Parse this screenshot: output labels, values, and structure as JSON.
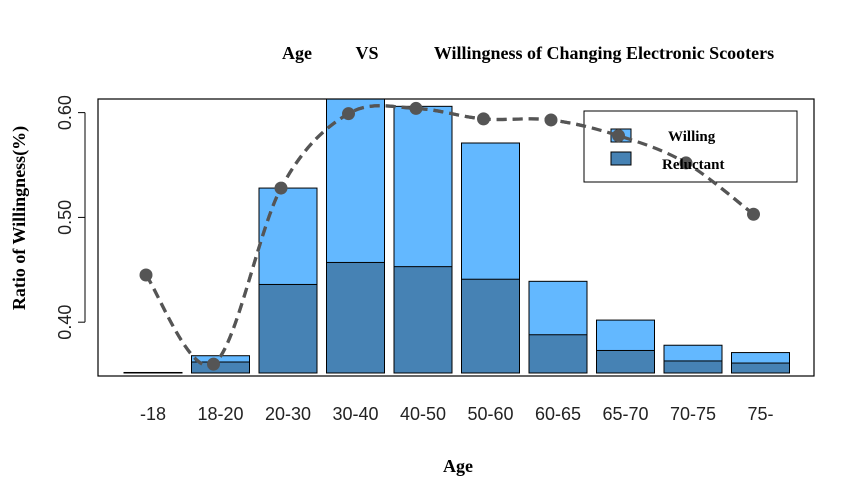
{
  "chart_data": {
    "type": "bar",
    "title_parts": [
      "Age",
      "VS",
      "Willingness of Changing Electronic Scooters"
    ],
    "xlabel": "Age",
    "ylabel": "Ratio of Willingness(%)",
    "categories": [
      "-18",
      "18-20",
      "20-30",
      "30-40",
      "40-50",
      "50-60",
      "60-65",
      "65-70",
      "70-75",
      "75-"
    ],
    "ylim": [
      0.35,
      0.61
    ],
    "yticks": [
      0.4,
      0.5,
      0.6
    ],
    "ytick_labels": [
      "0.40",
      "0.50",
      "0.60"
    ],
    "series": [
      {
        "name": "Willing",
        "color": "#63b8ff",
        "values": [
          0.352,
          0.368,
          0.528,
          0.62,
          0.606,
          0.571,
          0.439,
          0.402,
          0.378,
          0.371
        ]
      },
      {
        "name": "Reluctant",
        "color": "#4682b4",
        "values": [
          0.351,
          0.362,
          0.436,
          0.457,
          0.453,
          0.441,
          0.388,
          0.373,
          0.363,
          0.361
        ]
      },
      {
        "name": "ratio line",
        "color": "#555555",
        "values": [
          0.445,
          0.36,
          0.528,
          0.599,
          0.604,
          0.594,
          0.593,
          0.578,
          0.552,
          0.503
        ]
      }
    ],
    "legend_position": "top-right",
    "grid": false
  }
}
